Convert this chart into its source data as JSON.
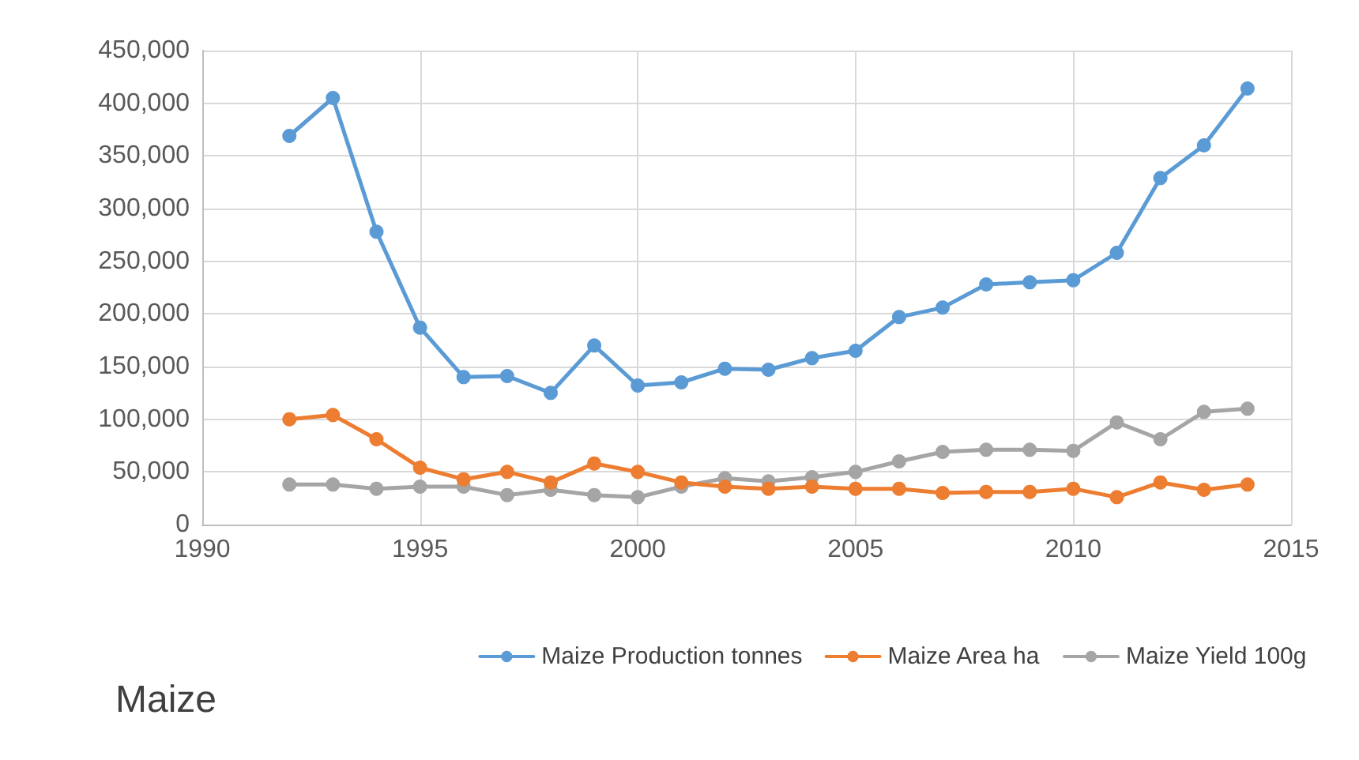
{
  "chart_data": {
    "type": "line",
    "title": "Maize",
    "x": [
      1992,
      1993,
      1994,
      1995,
      1996,
      1997,
      1998,
      1999,
      2000,
      2001,
      2002,
      2003,
      2004,
      2005,
      2006,
      2007,
      2008,
      2009,
      2010,
      2011,
      2012,
      2013,
      2014
    ],
    "series": [
      {
        "name": "Maize Production tonnes",
        "color": "#5b9bd5",
        "values": [
          369000,
          405000,
          278000,
          187000,
          140000,
          141000,
          125000,
          170000,
          132000,
          135000,
          148000,
          147000,
          158000,
          165000,
          197000,
          206000,
          228000,
          230000,
          232000,
          258000,
          329000,
          360000,
          414000
        ]
      },
      {
        "name": "Maize Area ha",
        "color": "#ed7d31",
        "values": [
          100000,
          104000,
          81000,
          54000,
          43000,
          50000,
          40000,
          58000,
          50000,
          40000,
          36000,
          34000,
          36000,
          34000,
          34000,
          30000,
          31000,
          31000,
          34000,
          26000,
          40000,
          33000,
          38000
        ]
      },
      {
        "name": "Maize Yield 100g",
        "color": "#a5a5a5",
        "values": [
          38000,
          38000,
          34000,
          36000,
          36000,
          28000,
          33000,
          28000,
          26000,
          36000,
          44000,
          41000,
          45000,
          50000,
          60000,
          69000,
          71000,
          71000,
          70000,
          97000,
          81000,
          107000,
          110000
        ]
      }
    ],
    "xlim": [
      1990,
      2015
    ],
    "xticks": [
      1990,
      1995,
      2000,
      2005,
      2010,
      2015
    ],
    "ylim": [
      0,
      450000
    ],
    "yticks": [
      0,
      {
        "value": 50000,
        "label": "50,000"
      },
      {
        "value": 100000,
        "label": "100,000"
      },
      {
        "value": 150000,
        "label": "150,000"
      },
      {
        "value": 200000,
        "label": "200,000"
      },
      {
        "value": 250000,
        "label": "250,000"
      },
      {
        "value": 300000,
        "label": "300,000"
      },
      {
        "value": 350000,
        "label": "350,000"
      },
      {
        "value": 400000,
        "label": "400,000"
      },
      {
        "value": 450000,
        "label": "450,000"
      }
    ],
    "grid": true,
    "legend": "bottom right",
    "marker": "circle",
    "line_style": "solid"
  }
}
